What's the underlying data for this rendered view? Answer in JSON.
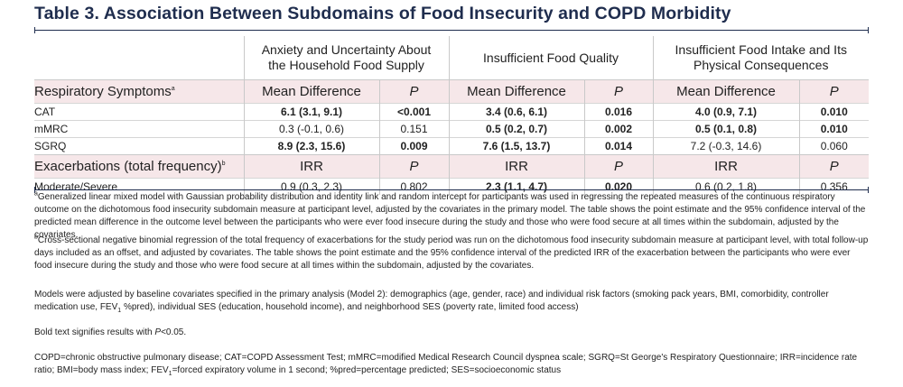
{
  "title": "Table 3. Association Between Subdomains of Food Insecurity and COPD Morbidity",
  "groups": [
    {
      "line1": "Anxiety and Uncertainty About",
      "line2": "the Household Food Supply"
    },
    {
      "line1": "Insufficient Food Quality",
      "line2": ""
    },
    {
      "line1": "Insufficient Food Intake and Its",
      "line2": "Physical Consequences"
    }
  ],
  "section1": {
    "label": "Respiratory Symptoms",
    "label_sup": "a",
    "c1": "Mean Difference",
    "p1": "P",
    "c2": "Mean Difference",
    "p2": "P",
    "c3": "Mean Difference",
    "p3": "P",
    "rows": [
      {
        "label": "CAT",
        "v1": "6.1 (3.1, 9.1)",
        "q1": "<0.001",
        "v2": "3.4 (0.6, 6.1)",
        "q2": "0.016",
        "v3": "4.0 (0.9, 7.1)",
        "q3": "0.010"
      },
      {
        "label": "mMRC",
        "v1": "0.3 (-0.1, 0.6)",
        "q1": "0.151",
        "v2": "0.5 (0.2, 0.7)",
        "q2": "0.002",
        "v3": "0.5 (0.1, 0.8)",
        "q3": "0.010"
      },
      {
        "label": "SGRQ",
        "v1": "8.9 (2.3, 15.6)",
        "q1": "0.009",
        "v2": "7.6 (1.5, 13.7)",
        "q2": "0.014",
        "v3": "7.2 (-0.3, 14.6)",
        "q3": "0.060"
      }
    ]
  },
  "section2": {
    "label": "Exacerbations (total frequency)",
    "label_sup": "b",
    "c1": "IRR",
    "p1": "P",
    "c2": "IRR",
    "p2": "P",
    "c3": "IRR",
    "p3": "P",
    "rows": [
      {
        "label": "Moderate/Severe",
        "v1": "0.9 (0.3, 2.3)",
        "q1": "0.802",
        "v2": "2.3 (1.1, 4.7)",
        "q2": "0.020",
        "v3": "0.6 (0.2, 1.8)",
        "q3": "0.356"
      }
    ]
  },
  "footnotes": {
    "a_mark": "a",
    "a_text": "Generalized linear mixed model with Gaussian probability distribution and identity link and random intercept for participants was used in regressing the repeated measures of the continuous respiratory outcome on the dichotomous food insecurity subdomain measure at participant level, adjusted by the covariates in the primary model. The table shows the point estimate and the 95% confidence interval of the predicted mean difference in the outcome level between the participants who were ever food insecure during the study and those who were food secure at all times within the subdomain, adjusted by the covariates.",
    "b_mark": "b",
    "b_text": "Cross-sectional negative binomial regression of the total frequency of exacerbations for the study period was run on the dichotomous food insecurity subdomain measure at participant level, with total follow-up days included as an offset, and adjusted by covariates. The table shows the point estimate and the 95% confidence interval of the predicted IRR of the exacerbation between the participants who were ever food insecure during the study and those who were food secure at all times within the subdomain, adjusted by the covariates.",
    "models_pre": "Models were adjusted by baseline covariates specified in the primary analysis (Model 2): demographics (age, gender, race) and individual risk factors (smoking pack years, BMI, comorbidity, controller medication use, FEV",
    "models_sub": "1",
    "models_post": " %pred), individual SES (education, household income), and neighborhood SES (poverty rate, limited food access)",
    "bold_pre": "Bold text signifies results with ",
    "bold_p": "P",
    "bold_post": "<0.05.",
    "abbr_pre": "COPD=chronic obstructive pulmonary disease; CAT=COPD Assessment Test; mMRC=modified Medical Research Council dyspnea scale; SGRQ=St George's Respiratory Questionnaire; IRR=incidence rate ratio; BMI=body mass index; FEV",
    "abbr_sub": "1",
    "abbr_post": "=forced expiratory volume in 1 second; %pred=percentage predicted; SES=socioeconomic status"
  }
}
